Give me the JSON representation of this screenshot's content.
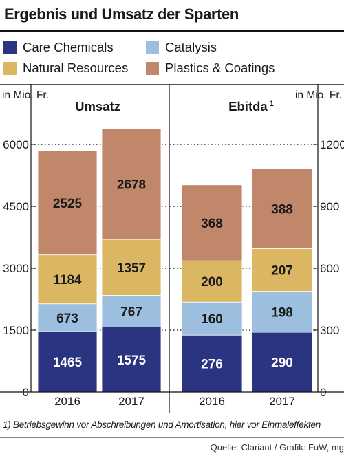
{
  "title": "Ergebnis und Umsatz der Sparten",
  "legend": [
    {
      "label": "Care Chemicals",
      "color": "#2b3481"
    },
    {
      "label": "Catalysis",
      "color": "#9dbfdf"
    },
    {
      "label": "Natural Resources",
      "color": "#dcb763"
    },
    {
      "label": "Plastics & Coatings",
      "color": "#c0876a"
    }
  ],
  "footnote": "1) Betriebsgewinn vor Abschreibungen und Amortisation, hier vor Einmaleffekten",
  "source": "Quelle: Clariant / Grafik: FuW, mg",
  "chart_data": [
    {
      "type": "bar",
      "stacked": true,
      "title": "Umsatz",
      "unit_label": "in Mio. Fr.",
      "axis_side": "left",
      "categories": [
        "2016",
        "2017"
      ],
      "ylim": [
        0,
        6000
      ],
      "yticks": [
        0,
        1500,
        3000,
        4500,
        6000
      ],
      "ytick_labels": [
        "0",
        "1500",
        "3000",
        "4500",
        "6000"
      ],
      "grid": "dotted",
      "series": [
        {
          "name": "Care Chemicals",
          "values": [
            1465,
            1575
          ],
          "color": "#2b3481",
          "label_color": "#ffffff"
        },
        {
          "name": "Catalysis",
          "values": [
            673,
            767
          ],
          "color": "#9dbfdf",
          "label_color": "#1a1a1a"
        },
        {
          "name": "Natural Resources",
          "values": [
            1184,
            1357
          ],
          "color": "#dcb763",
          "label_color": "#1a1a1a"
        },
        {
          "name": "Plastics & Coatings",
          "values": [
            2525,
            2678
          ],
          "color": "#c0876a",
          "label_color": "#1a1a1a"
        }
      ]
    },
    {
      "type": "bar",
      "stacked": true,
      "title": "Ebitda",
      "title_superscript": "1",
      "unit_label": "in Mio. Fr.",
      "axis_side": "right",
      "categories": [
        "2016",
        "2017"
      ],
      "ylim": [
        0,
        1200
      ],
      "yticks": [
        0,
        300,
        600,
        900,
        1200
      ],
      "ytick_labels": [
        "0",
        "300",
        "600",
        "900",
        "1200"
      ],
      "grid": "dotted",
      "series": [
        {
          "name": "Care Chemicals",
          "values": [
            276,
            290
          ],
          "color": "#2b3481",
          "label_color": "#ffffff"
        },
        {
          "name": "Catalysis",
          "values": [
            160,
            198
          ],
          "color": "#9dbfdf",
          "label_color": "#1a1a1a"
        },
        {
          "name": "Natural Resources",
          "values": [
            200,
            207
          ],
          "color": "#dcb763",
          "label_color": "#1a1a1a"
        },
        {
          "name": "Plastics & Coatings",
          "values": [
            368,
            388
          ],
          "color": "#c0876a",
          "label_color": "#1a1a1a"
        }
      ]
    }
  ]
}
